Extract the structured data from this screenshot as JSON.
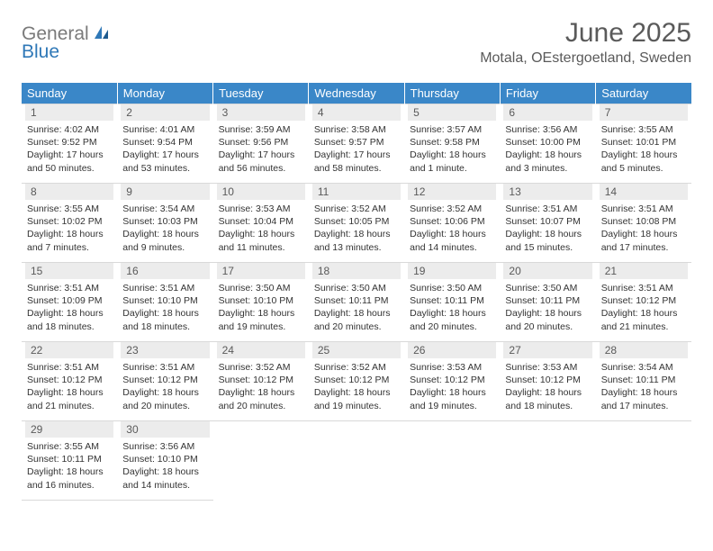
{
  "logo": {
    "text1": "General",
    "text2": "Blue"
  },
  "title": "June 2025",
  "location": "Motala, OEstergoetland, Sweden",
  "accent_color": "#3a87c8",
  "header_bg": "#ececec",
  "weekdays": [
    "Sunday",
    "Monday",
    "Tuesday",
    "Wednesday",
    "Thursday",
    "Friday",
    "Saturday"
  ],
  "weeks": [
    [
      {
        "n": "1",
        "sr": "4:02 AM",
        "ss": "9:52 PM",
        "dl": "17 hours and 50 minutes."
      },
      {
        "n": "2",
        "sr": "4:01 AM",
        "ss": "9:54 PM",
        "dl": "17 hours and 53 minutes."
      },
      {
        "n": "3",
        "sr": "3:59 AM",
        "ss": "9:56 PM",
        "dl": "17 hours and 56 minutes."
      },
      {
        "n": "4",
        "sr": "3:58 AM",
        "ss": "9:57 PM",
        "dl": "17 hours and 58 minutes."
      },
      {
        "n": "5",
        "sr": "3:57 AM",
        "ss": "9:58 PM",
        "dl": "18 hours and 1 minute."
      },
      {
        "n": "6",
        "sr": "3:56 AM",
        "ss": "10:00 PM",
        "dl": "18 hours and 3 minutes."
      },
      {
        "n": "7",
        "sr": "3:55 AM",
        "ss": "10:01 PM",
        "dl": "18 hours and 5 minutes."
      }
    ],
    [
      {
        "n": "8",
        "sr": "3:55 AM",
        "ss": "10:02 PM",
        "dl": "18 hours and 7 minutes."
      },
      {
        "n": "9",
        "sr": "3:54 AM",
        "ss": "10:03 PM",
        "dl": "18 hours and 9 minutes."
      },
      {
        "n": "10",
        "sr": "3:53 AM",
        "ss": "10:04 PM",
        "dl": "18 hours and 11 minutes."
      },
      {
        "n": "11",
        "sr": "3:52 AM",
        "ss": "10:05 PM",
        "dl": "18 hours and 13 minutes."
      },
      {
        "n": "12",
        "sr": "3:52 AM",
        "ss": "10:06 PM",
        "dl": "18 hours and 14 minutes."
      },
      {
        "n": "13",
        "sr": "3:51 AM",
        "ss": "10:07 PM",
        "dl": "18 hours and 15 minutes."
      },
      {
        "n": "14",
        "sr": "3:51 AM",
        "ss": "10:08 PM",
        "dl": "18 hours and 17 minutes."
      }
    ],
    [
      {
        "n": "15",
        "sr": "3:51 AM",
        "ss": "10:09 PM",
        "dl": "18 hours and 18 minutes."
      },
      {
        "n": "16",
        "sr": "3:51 AM",
        "ss": "10:10 PM",
        "dl": "18 hours and 18 minutes."
      },
      {
        "n": "17",
        "sr": "3:50 AM",
        "ss": "10:10 PM",
        "dl": "18 hours and 19 minutes."
      },
      {
        "n": "18",
        "sr": "3:50 AM",
        "ss": "10:11 PM",
        "dl": "18 hours and 20 minutes."
      },
      {
        "n": "19",
        "sr": "3:50 AM",
        "ss": "10:11 PM",
        "dl": "18 hours and 20 minutes."
      },
      {
        "n": "20",
        "sr": "3:50 AM",
        "ss": "10:11 PM",
        "dl": "18 hours and 20 minutes."
      },
      {
        "n": "21",
        "sr": "3:51 AM",
        "ss": "10:12 PM",
        "dl": "18 hours and 21 minutes."
      }
    ],
    [
      {
        "n": "22",
        "sr": "3:51 AM",
        "ss": "10:12 PM",
        "dl": "18 hours and 21 minutes."
      },
      {
        "n": "23",
        "sr": "3:51 AM",
        "ss": "10:12 PM",
        "dl": "18 hours and 20 minutes."
      },
      {
        "n": "24",
        "sr": "3:52 AM",
        "ss": "10:12 PM",
        "dl": "18 hours and 20 minutes."
      },
      {
        "n": "25",
        "sr": "3:52 AM",
        "ss": "10:12 PM",
        "dl": "18 hours and 19 minutes."
      },
      {
        "n": "26",
        "sr": "3:53 AM",
        "ss": "10:12 PM",
        "dl": "18 hours and 19 minutes."
      },
      {
        "n": "27",
        "sr": "3:53 AM",
        "ss": "10:12 PM",
        "dl": "18 hours and 18 minutes."
      },
      {
        "n": "28",
        "sr": "3:54 AM",
        "ss": "10:11 PM",
        "dl": "18 hours and 17 minutes."
      }
    ],
    [
      {
        "n": "29",
        "sr": "3:55 AM",
        "ss": "10:11 PM",
        "dl": "18 hours and 16 minutes."
      },
      {
        "n": "30",
        "sr": "3:56 AM",
        "ss": "10:10 PM",
        "dl": "18 hours and 14 minutes."
      },
      null,
      null,
      null,
      null,
      null
    ]
  ],
  "labels": {
    "sunrise": "Sunrise:",
    "sunset": "Sunset:",
    "daylight": "Daylight:"
  }
}
